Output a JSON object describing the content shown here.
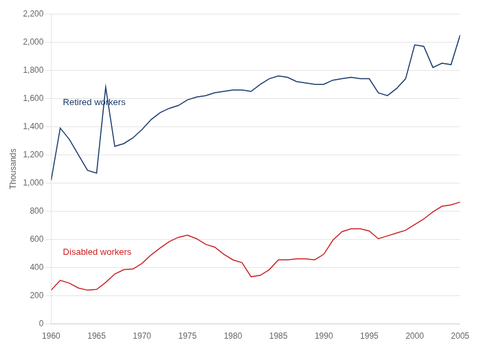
{
  "chart_data": {
    "type": "line",
    "ylabel": "Thousands",
    "x": [
      1960,
      1961,
      1962,
      1963,
      1964,
      1965,
      1966,
      1967,
      1968,
      1969,
      1970,
      1971,
      1972,
      1973,
      1974,
      1975,
      1976,
      1977,
      1978,
      1979,
      1980,
      1981,
      1982,
      1983,
      1984,
      1985,
      1986,
      1987,
      1988,
      1989,
      1990,
      1991,
      1992,
      1993,
      1994,
      1995,
      1996,
      1997,
      1998,
      1999,
      2000,
      2001,
      2002,
      2003,
      2004,
      2005
    ],
    "series": [
      {
        "color": "#1a3a6b",
        "values": [
          1020,
          1390,
          1310,
          1200,
          1090,
          1070,
          1680,
          1260,
          1280,
          1320,
          1380,
          1450,
          1500,
          1530,
          1550,
          1590,
          1610,
          1620,
          1640,
          1650,
          1660,
          1660,
          1650,
          1700,
          1740,
          1760,
          1750,
          1720,
          1710,
          1700,
          1700,
          1730,
          1740,
          1750,
          1740,
          1740,
          1640,
          1620,
          1670,
          1740,
          1980,
          1970,
          1820,
          1850,
          1840,
          2050
        ]
      },
      {
        "color": "#cc2222",
        "values": [
          240,
          310,
          290,
          255,
          240,
          245,
          295,
          355,
          385,
          390,
          430,
          490,
          540,
          585,
          615,
          630,
          605,
          565,
          545,
          495,
          455,
          435,
          335,
          345,
          385,
          455,
          455,
          462,
          462,
          455,
          495,
          595,
          655,
          675,
          675,
          660,
          605,
          625,
          645,
          665,
          705,
          745,
          795,
          835,
          845,
          865
        ]
      }
    ],
    "annotations": [
      {
        "text": "Retired workers",
        "x": 1961.3,
        "y": 1530,
        "color": "#1a3a6b"
      },
      {
        "text": "Disabled workers",
        "x": 1961.3,
        "y": 465,
        "color": "#cc2222"
      }
    ],
    "xlim": [
      1960,
      2005
    ],
    "xticks": [
      1960,
      1965,
      1970,
      1975,
      1980,
      1985,
      1990,
      1995,
      2000,
      2005
    ],
    "ylim": [
      0,
      2200
    ],
    "yticks": [
      0,
      200,
      400,
      600,
      800,
      {
        "value": 1000,
        "label": "1,000"
      },
      {
        "value": 1200,
        "label": "1,200"
      },
      {
        "value": 1400,
        "label": "1,400"
      },
      {
        "value": 1600,
        "label": "1,600"
      },
      {
        "value": 1800,
        "label": "1,800"
      },
      {
        "value": 2000,
        "label": "2,000"
      },
      {
        "value": 2200,
        "label": "2,200"
      }
    ],
    "grid": "y"
  }
}
